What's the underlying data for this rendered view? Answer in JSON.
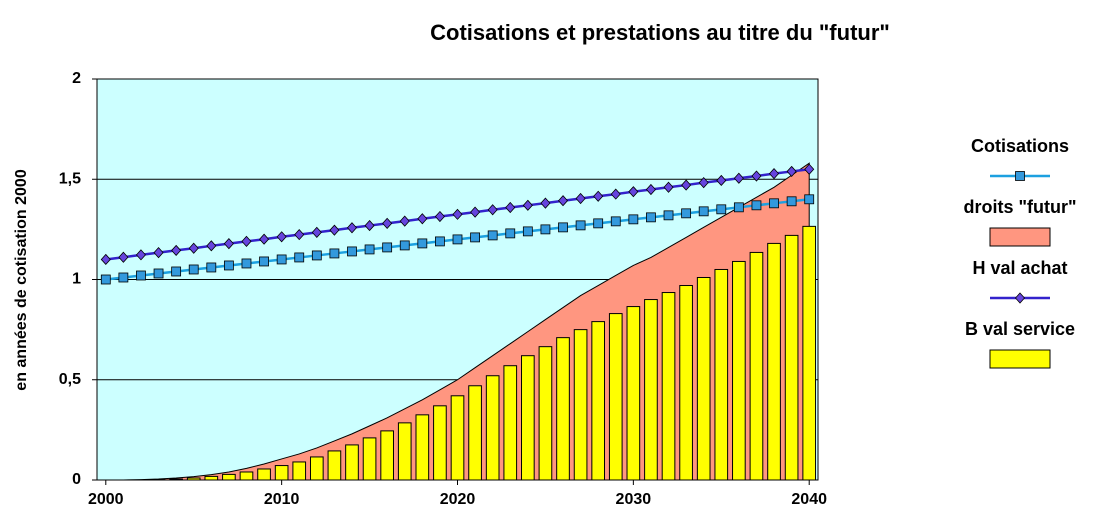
{
  "chart_data": {
    "type": "combo",
    "title": "Cotisations et prestations au titre du \"futur\"",
    "y_label": "en années de cotisation 2000",
    "x": [
      2000,
      2001,
      2002,
      2003,
      2004,
      2005,
      2006,
      2007,
      2008,
      2009,
      2010,
      2011,
      2012,
      2013,
      2014,
      2015,
      2016,
      2017,
      2018,
      2019,
      2020,
      2021,
      2022,
      2023,
      2024,
      2025,
      2026,
      2027,
      2028,
      2029,
      2030,
      2031,
      2032,
      2033,
      2034,
      2035,
      2036,
      2037,
      2038,
      2039,
      2040
    ],
    "xlim": [
      1999.5,
      2040.5
    ],
    "xticks": [
      2000,
      2010,
      2020,
      2030,
      2040
    ],
    "ylim": [
      0,
      2
    ],
    "yticks": [
      0,
      {
        "value": 0.5,
        "label": "0,5"
      },
      1,
      {
        "value": 1.5,
        "label": "1,5"
      },
      2
    ],
    "grid": true,
    "legend": "right",
    "series": [
      {
        "name": "Cotisations",
        "type": "line",
        "marker": "square",
        "color": "#1ca0e0",
        "marker_color": "#3399dd",
        "values": [
          1.0,
          1.01,
          1.02,
          1.03,
          1.04,
          1.05,
          1.06,
          1.07,
          1.08,
          1.09,
          1.1,
          1.11,
          1.12,
          1.13,
          1.14,
          1.15,
          1.16,
          1.17,
          1.18,
          1.19,
          1.2,
          1.21,
          1.22,
          1.23,
          1.24,
          1.25,
          1.26,
          1.27,
          1.28,
          1.29,
          1.3,
          1.31,
          1.32,
          1.33,
          1.34,
          1.35,
          1.36,
          1.37,
          1.38,
          1.39,
          1.4
        ]
      },
      {
        "name": "droits \"futur\"",
        "type": "area",
        "color": "#ff9680",
        "values": [
          0,
          0,
          0.002,
          0.005,
          0.01,
          0.017,
          0.027,
          0.04,
          0.058,
          0.08,
          0.105,
          0.13,
          0.16,
          0.195,
          0.23,
          0.27,
          0.31,
          0.355,
          0.4,
          0.45,
          0.5,
          0.56,
          0.62,
          0.68,
          0.74,
          0.8,
          0.86,
          0.92,
          0.97,
          1.02,
          1.07,
          1.11,
          1.16,
          1.21,
          1.26,
          1.31,
          1.36,
          1.41,
          1.46,
          1.52,
          1.58
        ]
      },
      {
        "name": "H val achat",
        "type": "line",
        "marker": "diamond",
        "color": "#3322cc",
        "marker_color": "#6644dd",
        "values": [
          1.1,
          1.111,
          1.123,
          1.134,
          1.145,
          1.156,
          1.168,
          1.179,
          1.19,
          1.201,
          1.213,
          1.224,
          1.235,
          1.246,
          1.258,
          1.269,
          1.28,
          1.291,
          1.303,
          1.314,
          1.325,
          1.336,
          1.348,
          1.359,
          1.37,
          1.381,
          1.393,
          1.404,
          1.415,
          1.426,
          1.438,
          1.449,
          1.46,
          1.471,
          1.483,
          1.494,
          1.505,
          1.516,
          1.528,
          1.539,
          1.55
        ]
      },
      {
        "name": "B val service",
        "type": "bar",
        "color": "#ffff00",
        "values": [
          0,
          0,
          0,
          0.002,
          0.005,
          0.01,
          0.018,
          0.028,
          0.04,
          0.055,
          0.072,
          0.09,
          0.115,
          0.145,
          0.175,
          0.21,
          0.245,
          0.285,
          0.325,
          0.37,
          0.42,
          0.47,
          0.52,
          0.57,
          0.62,
          0.665,
          0.71,
          0.75,
          0.79,
          0.83,
          0.865,
          0.9,
          0.935,
          0.97,
          1.01,
          1.05,
          1.09,
          1.135,
          1.18,
          1.22,
          1.265
        ]
      }
    ]
  }
}
